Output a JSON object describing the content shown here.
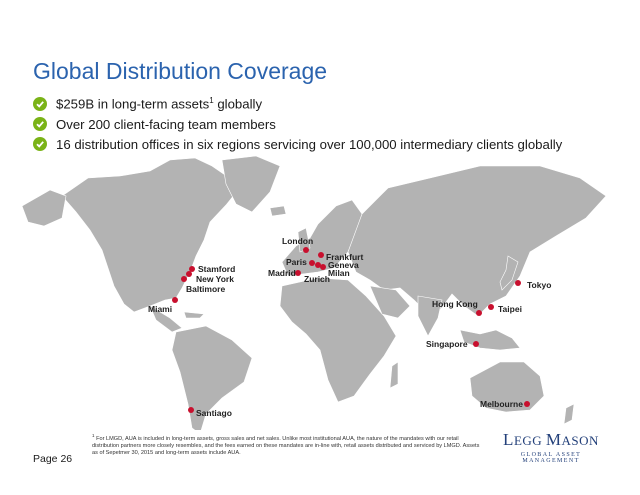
{
  "title": "Global Distribution Coverage",
  "bullets": [
    {
      "text": "$259B in long-term assets",
      "sup": "1",
      "tail": " globally"
    },
    {
      "text": "Over 200 client-facing team members",
      "sup": "",
      "tail": ""
    },
    {
      "text": "16 distribution offices in six regions servicing over 100,000 intermediary clients globally",
      "sup": "",
      "tail": ""
    }
  ],
  "cities": {
    "london": "London",
    "frankfurt": "Frankfurt",
    "paris": "Paris",
    "geneva": "Geneva",
    "madrid": "Madrid",
    "zurich": "Zurich",
    "milan": "Milan",
    "stamford": "Stamford",
    "new_york": "New York",
    "baltimore": "Baltimore",
    "miami": "Miami",
    "santiago": "Santiago",
    "tokyo": "Tokyo",
    "hong_kong": "Hong Kong",
    "taipei": "Taipei",
    "singapore": "Singapore",
    "melbourne": "Melbourne"
  },
  "page_label": "Page 26",
  "footnote": {
    "sup": "1",
    "text": "For LMGD, AUA is included in long-term assets, gross sales and net sales. Unlike most institutional AUA, the nature of the mandates with our retail distribution partners more closely resembles, and the fees earned on these mandates are in-line with, retail assets distributed and serviced by LMGD. Assets as of Sepetmer 30, 2015 and long-term assets include AUA."
  },
  "logo": {
    "l1": "L",
    "l2": "EGG ",
    "m1": "M",
    "m2": "ASON",
    "sub": "GLOBAL ASSET MANAGEMENT"
  },
  "colors": {
    "title": "#2b63ae",
    "check": "#7ab317",
    "marker": "#c8102e",
    "land": "#b3b3b3",
    "logo": "#23407a"
  }
}
